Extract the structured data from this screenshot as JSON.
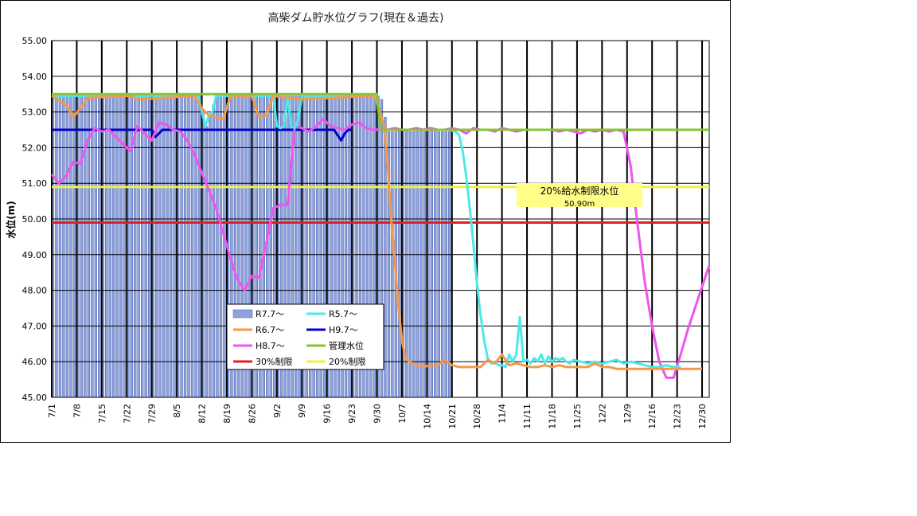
{
  "chart_data": {
    "type": "line",
    "title": "高柴ダム貯水位グラフ(現在＆過去)",
    "ylabel": "水位(m)",
    "xlabel": "",
    "ylim": [
      45.0,
      55.0
    ],
    "y_ticks": [
      "45.00",
      "46.00",
      "47.00",
      "48.00",
      "49.00",
      "50.00",
      "51.00",
      "52.00",
      "53.00",
      "54.00",
      "55.00"
    ],
    "x_range_days": [
      0,
      184
    ],
    "x_ticks": [
      {
        "label": "7/1",
        "day": 0
      },
      {
        "label": "7/8",
        "day": 7
      },
      {
        "label": "7/15",
        "day": 14
      },
      {
        "label": "7/22",
        "day": 21
      },
      {
        "label": "7/29",
        "day": 28
      },
      {
        "label": "8/5",
        "day": 35
      },
      {
        "label": "8/12",
        "day": 42
      },
      {
        "label": "8/19",
        "day": 49
      },
      {
        "label": "8/26",
        "day": 56
      },
      {
        "label": "9/2",
        "day": 63
      },
      {
        "label": "9/9",
        "day": 70
      },
      {
        "label": "9/16",
        "day": 77
      },
      {
        "label": "9/23",
        "day": 84
      },
      {
        "label": "9/30",
        "day": 91
      },
      {
        "label": "10/7",
        "day": 98
      },
      {
        "label": "10/14",
        "day": 105
      },
      {
        "label": "10/21",
        "day": 112
      },
      {
        "label": "10/28",
        "day": 119
      },
      {
        "label": "11/4",
        "day": 126
      },
      {
        "label": "11/11",
        "day": 133
      },
      {
        "label": "11/18",
        "day": 140
      },
      {
        "label": "11/25",
        "day": 147
      },
      {
        "label": "12/2",
        "day": 154
      },
      {
        "label": "12/9",
        "day": 161
      },
      {
        "label": "12/16",
        "day": 168
      },
      {
        "label": "12/23",
        "day": 175
      },
      {
        "label": "12/30",
        "day": 182
      }
    ],
    "grid": true,
    "legend_position": "center-left",
    "bar_series": {
      "name": "R7.7～",
      "color": "#8ea2dc",
      "x": [
        0,
        41,
        42,
        43,
        44,
        45,
        46,
        47,
        48,
        91,
        92,
        93,
        94,
        95,
        96,
        97,
        98,
        99,
        100,
        101,
        102,
        103,
        104,
        105,
        106,
        107,
        108,
        109,
        110,
        111
      ],
      "values": [
        53.45,
        53.45,
        53.0,
        52.6,
        52.9,
        53.2,
        53.45,
        53.45,
        53.45,
        53.45,
        53.35,
        52.85,
        52.45,
        52.45,
        52.45,
        52.5,
        52.5,
        52.5,
        52.45,
        52.45,
        52.5,
        52.5,
        52.45,
        52.45,
        52.5,
        52.5,
        52.45,
        52.45,
        52.45,
        52.45
      ]
    },
    "series": [
      {
        "name": "R5.7～",
        "color": "#4de8e8",
        "x": [
          0,
          41,
          43,
          44,
          45,
          46,
          48,
          62,
          63,
          64,
          65,
          66,
          67,
          68,
          69,
          70,
          90,
          91,
          92,
          111,
          113,
          114,
          115,
          116,
          117,
          118,
          119,
          120,
          121,
          122,
          123,
          124,
          125,
          126,
          127,
          128,
          129,
          130,
          131,
          132,
          133,
          134,
          135,
          136,
          137,
          138,
          139,
          140,
          141,
          142,
          143,
          144,
          145,
          146,
          148,
          150,
          152,
          154,
          156,
          158,
          160,
          162,
          164,
          166,
          168,
          170,
          172,
          174,
          176
        ],
        "values": [
          53.45,
          53.45,
          52.6,
          52.9,
          53.0,
          53.45,
          53.45,
          53.45,
          52.6,
          52.55,
          52.6,
          53.45,
          52.6,
          52.55,
          52.8,
          53.45,
          53.45,
          53.45,
          52.5,
          52.5,
          52.45,
          52.35,
          51.9,
          51.2,
          50.3,
          49.3,
          48.2,
          47.3,
          46.6,
          46.1,
          45.95,
          46.0,
          45.9,
          45.9,
          45.85,
          46.2,
          46.0,
          46.2,
          47.25,
          46.0,
          46.05,
          45.95,
          46.1,
          46.0,
          46.2,
          45.95,
          46.15,
          46.0,
          46.1,
          46.05,
          46.1,
          46.0,
          45.95,
          46.05,
          46.0,
          45.95,
          46.0,
          45.95,
          46.0,
          46.05,
          45.95,
          46.0,
          45.95,
          45.9,
          45.85,
          45.85,
          45.9,
          45.85,
          45.85
        ]
      },
      {
        "name": "R6.7～",
        "color": "#f39a4a",
        "x": [
          0,
          4,
          6,
          8,
          10,
          22,
          24,
          40,
          42,
          44,
          46,
          48,
          50,
          56,
          58,
          60,
          62,
          70,
          90,
          91,
          93,
          94,
          95,
          96,
          97,
          98,
          99,
          100,
          101,
          102,
          103,
          104,
          106,
          108,
          110,
          112,
          114,
          116,
          118,
          120,
          122,
          124,
          126,
          128,
          130,
          132,
          134,
          136,
          138,
          140,
          142,
          144,
          146,
          148,
          150,
          152,
          154,
          156,
          158,
          160,
          162,
          164,
          166,
          168,
          170,
          172,
          174,
          176,
          178,
          180,
          182
        ],
        "values": [
          53.45,
          53.2,
          52.85,
          53.1,
          53.4,
          53.45,
          53.35,
          53.45,
          53.1,
          52.9,
          52.85,
          52.8,
          53.45,
          53.45,
          52.85,
          52.9,
          53.45,
          53.35,
          53.45,
          53.3,
          52.6,
          51.5,
          50.0,
          48.8,
          47.6,
          46.6,
          46.1,
          46.0,
          45.95,
          45.9,
          45.9,
          45.85,
          45.9,
          45.9,
          46.05,
          45.9,
          45.85,
          45.85,
          45.85,
          45.85,
          46.05,
          45.95,
          46.2,
          45.9,
          45.95,
          45.9,
          45.85,
          45.85,
          45.9,
          45.85,
          45.9,
          45.85,
          45.85,
          45.85,
          45.85,
          45.95,
          45.85,
          45.85,
          45.8,
          45.8,
          45.8,
          45.8,
          45.8,
          45.8,
          45.8,
          45.8,
          45.8,
          45.8,
          45.8,
          45.8,
          45.8
        ]
      },
      {
        "name": "H9.7～",
        "color": "#0000cc",
        "x": [
          0,
          28,
          29,
          30,
          31,
          32,
          33,
          79,
          80,
          81,
          82,
          83,
          84
        ],
        "values": [
          52.5,
          52.5,
          52.3,
          52.4,
          52.5,
          52.5,
          52.5,
          52.5,
          52.35,
          52.2,
          52.4,
          52.5,
          52.5
        ]
      },
      {
        "name": "H8.7～",
        "color": "#ee55ee",
        "x": [
          0,
          2,
          4,
          6,
          8,
          10,
          12,
          14,
          16,
          18,
          20,
          22,
          24,
          26,
          28,
          30,
          32,
          34,
          36,
          38,
          40,
          42,
          44,
          46,
          48,
          50,
          52,
          54,
          56,
          58,
          60,
          62,
          64,
          66,
          68,
          70,
          72,
          74,
          76,
          78,
          80,
          82,
          84,
          86,
          88,
          90,
          91,
          92,
          94,
          96,
          98,
          100,
          102,
          104,
          106,
          108,
          110,
          112,
          114,
          116,
          118,
          120,
          122,
          124,
          126,
          128,
          130,
          132,
          134,
          136,
          138,
          140,
          142,
          144,
          146,
          148,
          150,
          152,
          154,
          156,
          158,
          160,
          162,
          164,
          166,
          168,
          170,
          172,
          174,
          176,
          178,
          180,
          182,
          184
        ],
        "values": [
          51.25,
          51.0,
          51.2,
          51.6,
          51.55,
          52.2,
          52.55,
          52.45,
          52.5,
          52.3,
          52.1,
          51.9,
          52.6,
          52.4,
          52.2,
          52.7,
          52.65,
          52.5,
          52.45,
          52.2,
          51.8,
          51.3,
          50.8,
          50.3,
          49.6,
          48.9,
          48.3,
          48.0,
          48.4,
          48.35,
          49.3,
          50.3,
          50.4,
          50.4,
          52.6,
          52.55,
          52.45,
          52.6,
          52.8,
          52.6,
          52.55,
          52.5,
          52.65,
          52.7,
          52.55,
          52.5,
          52.5,
          52.55,
          52.5,
          52.55,
          52.5,
          52.5,
          52.55,
          52.5,
          52.55,
          52.5,
          52.5,
          52.55,
          52.5,
          52.4,
          52.55,
          52.5,
          52.5,
          52.45,
          52.55,
          52.5,
          52.45,
          52.5,
          52.5,
          52.5,
          52.5,
          52.5,
          52.45,
          52.5,
          52.45,
          52.4,
          52.5,
          52.45,
          52.5,
          52.45,
          52.5,
          52.45,
          51.5,
          49.8,
          48.2,
          47.0,
          46.0,
          45.55,
          45.55,
          46.2,
          46.9,
          47.5,
          48.1,
          48.7
        ]
      },
      {
        "name": "管理水位",
        "color": "#88c432",
        "x": [
          0,
          90,
          91,
          92,
          184
        ],
        "values": [
          53.5,
          53.5,
          53.5,
          52.5,
          52.5
        ]
      },
      {
        "name": "30%制限",
        "color": "#e02020",
        "x": [
          0,
          184
        ],
        "values": [
          49.9,
          49.9
        ]
      },
      {
        "name": "20%制限",
        "color": "#f0f040",
        "x": [
          0,
          184
        ],
        "values": [
          50.9,
          50.9
        ]
      }
    ],
    "annotation": {
      "line1": "20%給水制限水位",
      "line2": "50.90m"
    }
  }
}
